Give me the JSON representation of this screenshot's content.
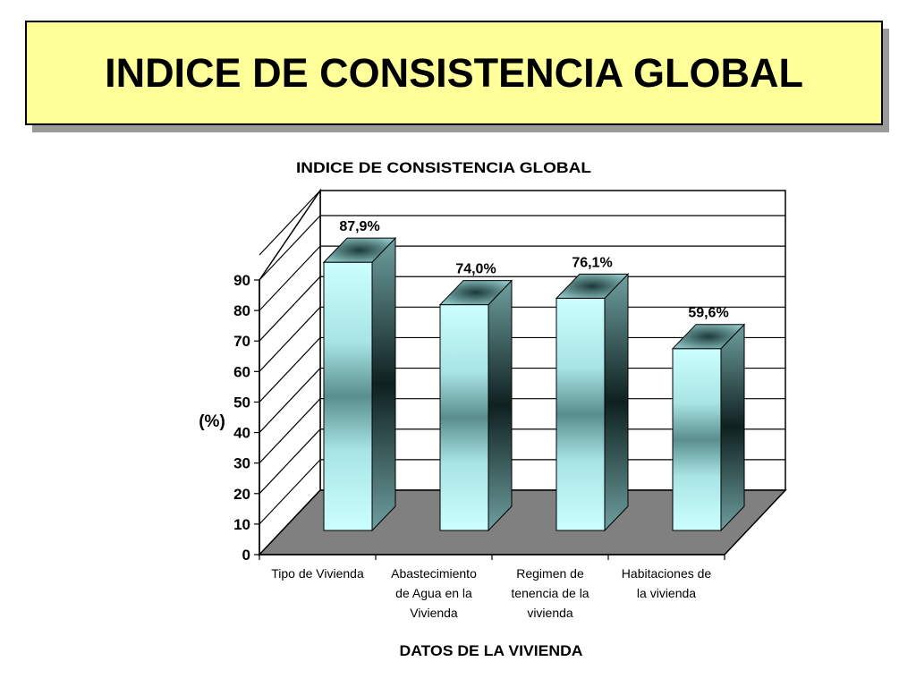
{
  "slide": {
    "title": "INDICE DE CONSISTENCIA GLOBAL"
  },
  "chart_data": {
    "type": "bar",
    "title": "INDICE DE CONSISTENCIA GLOBAL",
    "xlabel": "DATOS DE LA VIVIENDA",
    "ylabel": "(%)",
    "ylim": [
      0,
      90
    ],
    "yticks": [
      0,
      10,
      20,
      30,
      40,
      50,
      60,
      70,
      80,
      90
    ],
    "categories": [
      [
        "Tipo de Vivienda"
      ],
      [
        "Abastecimiento",
        "de Agua en la",
        "Vivienda"
      ],
      [
        "Regimen de",
        "tenencia de la",
        "vivienda"
      ],
      [
        "Habitaciones de",
        "la vivienda"
      ]
    ],
    "values": [
      87.9,
      74.0,
      76.1,
      59.6
    ],
    "data_labels": [
      "87,9%",
      "74,0%",
      "76,1%",
      "59,6%"
    ],
    "grid": true,
    "style": "3d-cylinder",
    "colors": {
      "bar_light": "#ccffff",
      "bar_dark": "#2f5d5d",
      "floor": "#808080",
      "wall": "#ffffff"
    }
  }
}
